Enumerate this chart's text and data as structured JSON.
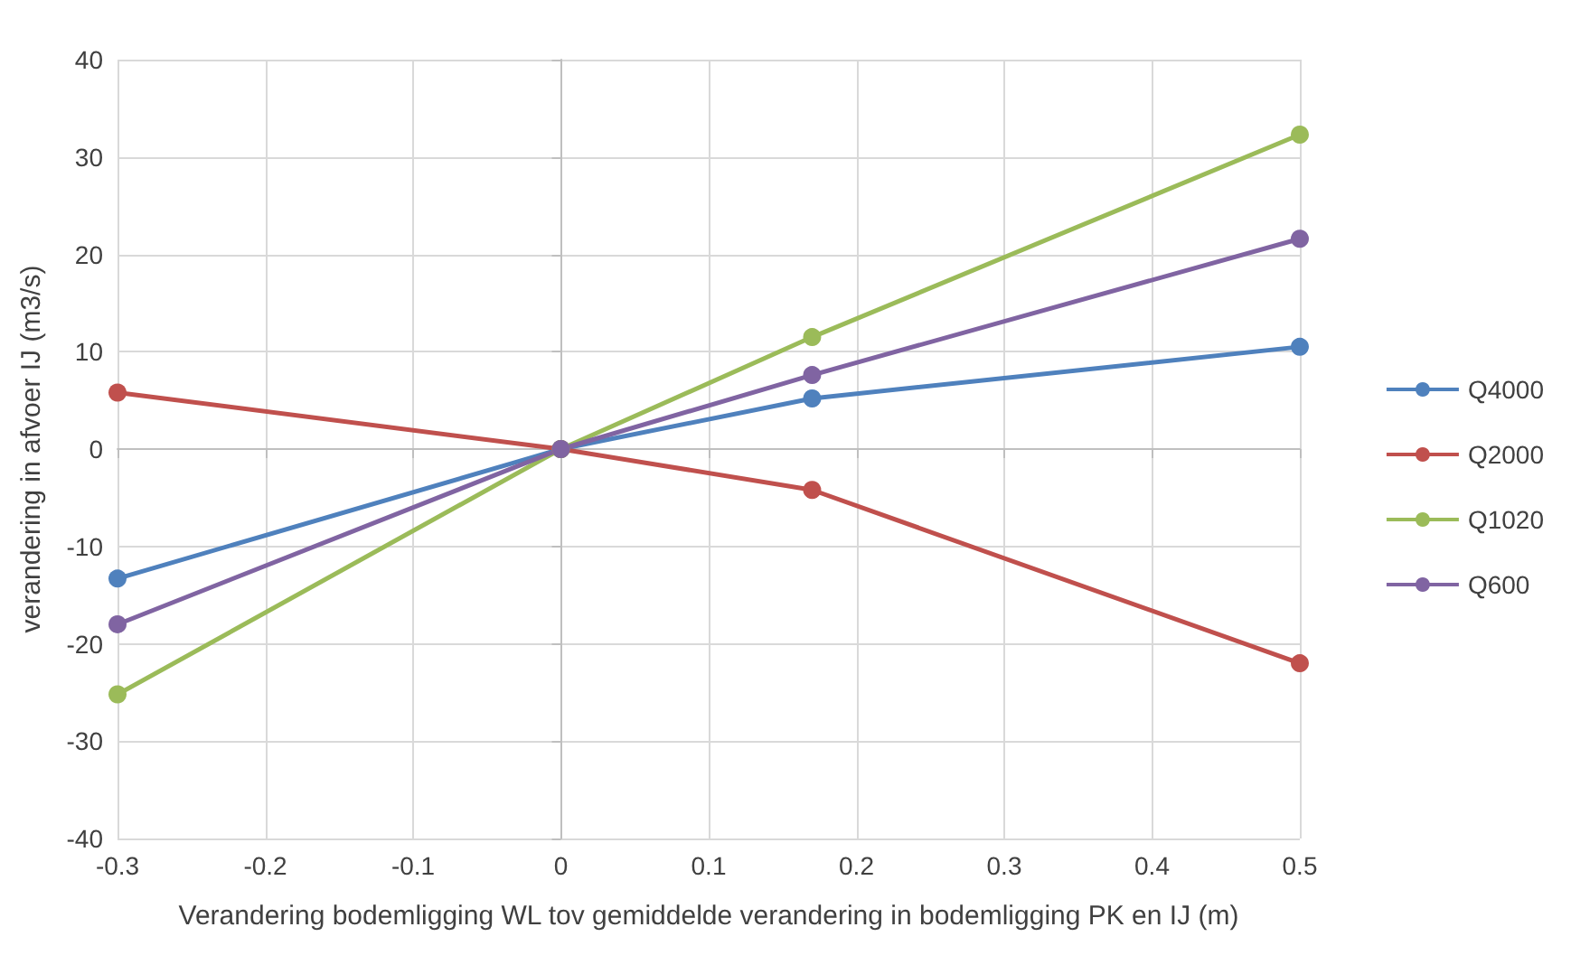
{
  "chart_data": {
    "type": "line",
    "xlabel": "Verandering bodemligging WL tov gemiddelde verandering in bodemligging PK en IJ (m)",
    "ylabel": "verandering in afvoer IJ (m3/s)",
    "x": [
      -0.3,
      0,
      0.17,
      0.5
    ],
    "series": [
      {
        "name": "Q4000",
        "color": "#4f81bd",
        "values": [
          -13.3,
          0,
          5.2,
          10.5
        ]
      },
      {
        "name": "Q2000",
        "color": "#c0504d",
        "values": [
          5.8,
          0,
          -4.2,
          -22
        ]
      },
      {
        "name": "Q1020",
        "color": "#9bbb59",
        "values": [
          -25.2,
          0,
          11.5,
          32.3
        ]
      },
      {
        "name": "Q600",
        "color": "#8064a2",
        "values": [
          -18,
          0,
          7.6,
          21.6
        ]
      }
    ],
    "xlim": [
      -0.3,
      0.5
    ],
    "xticks": [
      -0.3,
      -0.2,
      -0.1,
      0,
      0.1,
      0.2,
      0.3,
      0.4,
      0.5
    ],
    "ylim": [
      -40,
      40
    ],
    "yticks": [
      -40,
      -30,
      -20,
      -10,
      0,
      10,
      20,
      30,
      40
    ],
    "grid": true,
    "legend": "right",
    "marker": "circle",
    "line_style": "solid"
  }
}
